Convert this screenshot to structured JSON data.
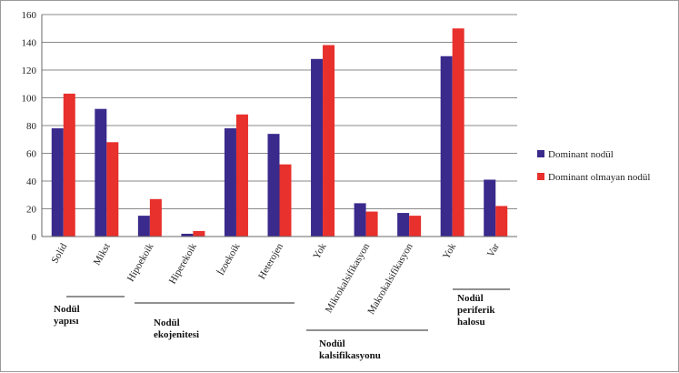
{
  "chart_data": {
    "type": "bar",
    "categories": [
      "Solid",
      "Mikst",
      "Hipoekoik",
      "Hiperekoik",
      "İzoekoik",
      "Heterojen",
      "Yok",
      "Mikrokalsifikasyon",
      "Makrokalsifikasyon",
      "Yok",
      "Var"
    ],
    "series": [
      {
        "name": "Dominant nodül",
        "color": "#3a2a8c",
        "values": [
          78,
          92,
          15,
          2,
          78,
          74,
          128,
          24,
          17,
          130,
          41
        ]
      },
      {
        "name": "Dominant olmayan nodül",
        "color": "#e8302c",
        "values": [
          103,
          68,
          27,
          4,
          88,
          52,
          138,
          18,
          15,
          150,
          22
        ]
      }
    ],
    "ylim": [
      0,
      160
    ],
    "yticks": [
      0,
      20,
      40,
      60,
      80,
      100,
      120,
      140,
      160
    ],
    "grid": true,
    "legend_position": "right",
    "category_groups": [
      {
        "lines": [
          "Nodül",
          "yapısı"
        ]
      },
      {
        "lines": [
          "Nodül",
          "ekojenitesi"
        ]
      },
      {
        "lines": [
          "Nodül",
          "kalsifikasyonu"
        ]
      },
      {
        "lines": [
          "Nodül",
          "periferik",
          "halosu"
        ]
      }
    ]
  }
}
